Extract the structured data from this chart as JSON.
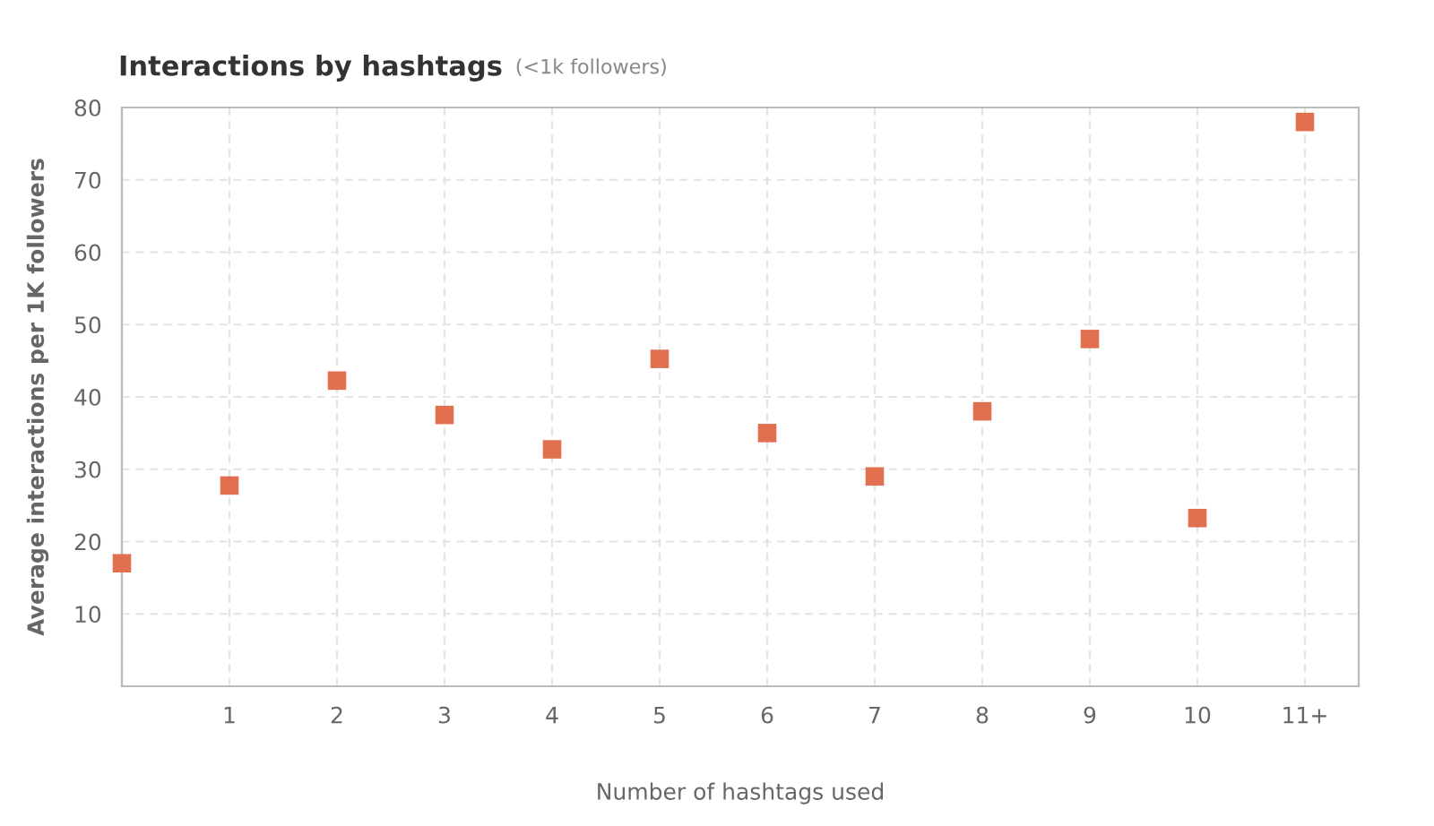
{
  "chart_data": {
    "type": "scatter",
    "title": "Interactions by hashtags",
    "subtitle": "(<1k followers)",
    "xlabel": "Number of hashtags used",
    "ylabel": "Average interactions per 1K followers",
    "categories": [
      null,
      "1",
      "2",
      "3",
      "4",
      "5",
      "6",
      "7",
      "8",
      "9",
      "10",
      "11+"
    ],
    "series": [
      {
        "color": "#e0704f",
        "values": [
          17,
          27.75,
          42.25,
          37.5,
          32.75,
          45.25,
          35,
          29,
          38,
          48,
          23.25,
          78
        ]
      }
    ],
    "ylim": [
      0,
      80
    ],
    "yticks": [
      10,
      20,
      30,
      40,
      50,
      60,
      70,
      80
    ],
    "grid": true,
    "marker": "square",
    "legend": false
  }
}
